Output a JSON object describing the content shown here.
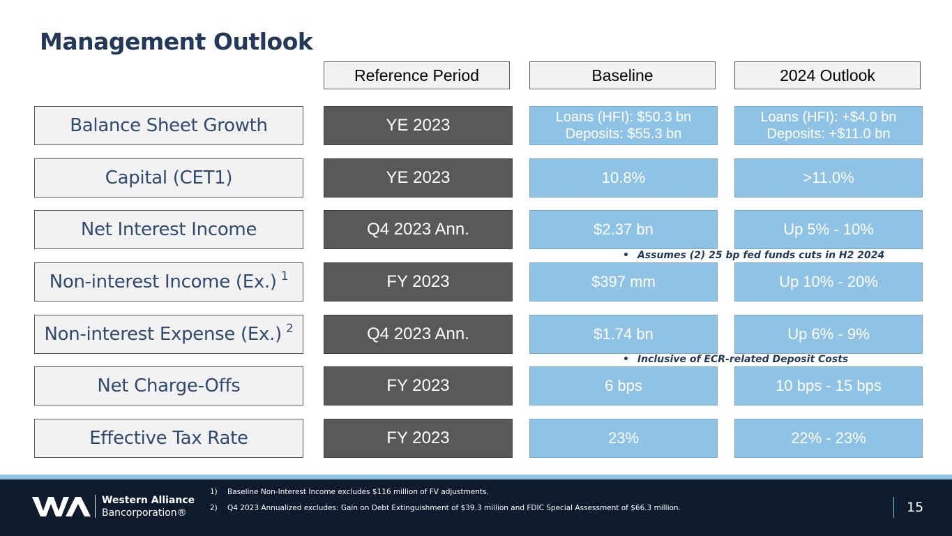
{
  "title": "Management Outlook",
  "headers": {
    "reference": "Reference Period",
    "baseline": "Baseline",
    "outlook": "2024 Outlook"
  },
  "rows": [
    {
      "label": "Balance Sheet Growth",
      "sup": "",
      "reference": "YE 2023",
      "baseline": [
        "Loans (HFI): $50.3 bn",
        "Deposits: $55.3 bn"
      ],
      "outlook": [
        "Loans (HFI): +$4.0 bn",
        "Deposits: +$11.0 bn"
      ]
    },
    {
      "label": "Capital (CET1)",
      "sup": "",
      "reference": "YE 2023",
      "baseline": "10.8%",
      "outlook": ">11.0%"
    },
    {
      "label": "Net Interest Income",
      "sup": "",
      "reference": "Q4 2023 Ann.",
      "baseline": "$2.37 bn",
      "outlook": "Up 5% - 10%"
    },
    {
      "label": "Non-interest Income (Ex.)",
      "sup": "1",
      "reference": "FY 2023",
      "baseline": "$397 mm",
      "outlook": "Up 10% - 20%"
    },
    {
      "label": "Non-interest Expense (Ex.)",
      "sup": "2",
      "reference": "Q4 2023 Ann.",
      "baseline": "$1.74 bn",
      "outlook": "Up 6% - 9%"
    },
    {
      "label": "Net Charge-Offs",
      "sup": "",
      "reference": "FY 2023",
      "baseline": "6 bps",
      "outlook": "10 bps - 15 bps"
    },
    {
      "label": "Effective Tax Rate",
      "sup": "",
      "reference": "FY 2023",
      "baseline": "23%",
      "outlook": "22% - 23%"
    }
  ],
  "notes": {
    "nii": "Assumes (2) 25 bp fed funds cuts in H2 2024",
    "expense": "Inclusive of ECR-related Deposit Costs",
    "bullet": "•"
  },
  "footer": {
    "logo_line1": "Western Alliance",
    "logo_line2": "Bancorporation®",
    "footnotes": [
      {
        "num": "1)",
        "text": "Baseline Non-Interest Income excludes $116 million of FV adjustments."
      },
      {
        "num": "2)",
        "text": "Q4 2023 Annualized excludes: Gain on Debt Extinguishment of $39.3 million and FDIC Special Assessment of $66.3 million."
      }
    ],
    "page_number": "15"
  },
  "colors": {
    "title": "#22395a",
    "reference_fill": "#595959",
    "value_fill": "#8fc3e6",
    "footer_bg": "#0e1b2d"
  }
}
